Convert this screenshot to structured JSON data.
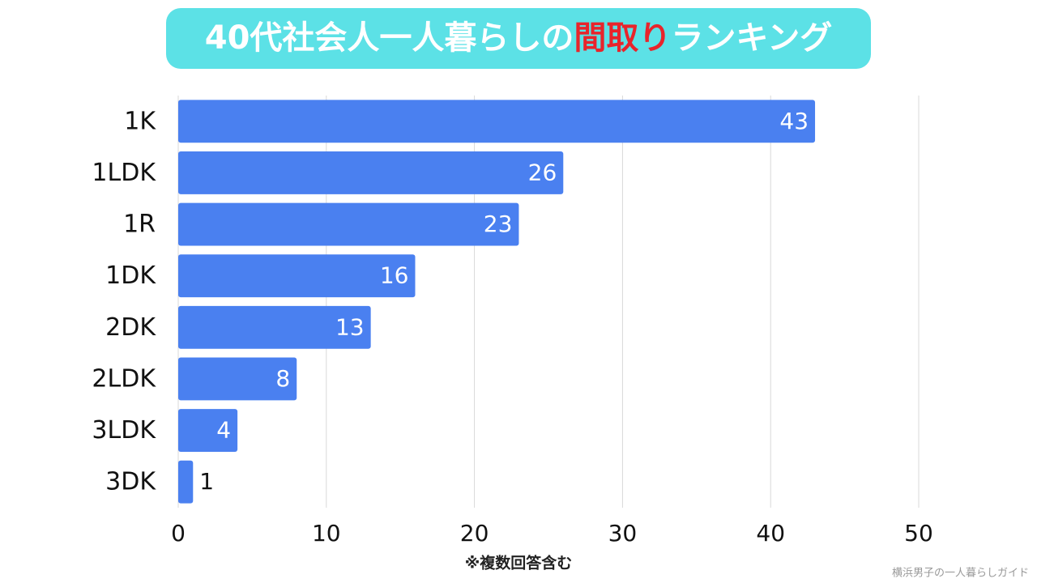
{
  "chart_data": {
    "type": "barh",
    "title": [
      {
        "text": "40代社会人一人暮らしの",
        "color": "#ffffff"
      },
      {
        "text": "間取り",
        "color": "#e8242b"
      },
      {
        "text": "ランキング",
        "color": "#ffffff"
      }
    ],
    "title_background": "#5ce1e6",
    "categories": [
      "1K",
      "1LDK",
      "1R",
      "1DK",
      "2DK",
      "2LDK",
      "3LDK",
      "3DK"
    ],
    "values": [
      43,
      26,
      23,
      16,
      13,
      8,
      4,
      1
    ],
    "color": "#4a80f0",
    "xlim": [
      0,
      50
    ],
    "xticks": [
      0,
      10,
      20,
      30,
      40,
      50
    ],
    "grid": true,
    "note": "※複数回答含む",
    "credit": "横浜男子の一人暮らしガイド"
  }
}
